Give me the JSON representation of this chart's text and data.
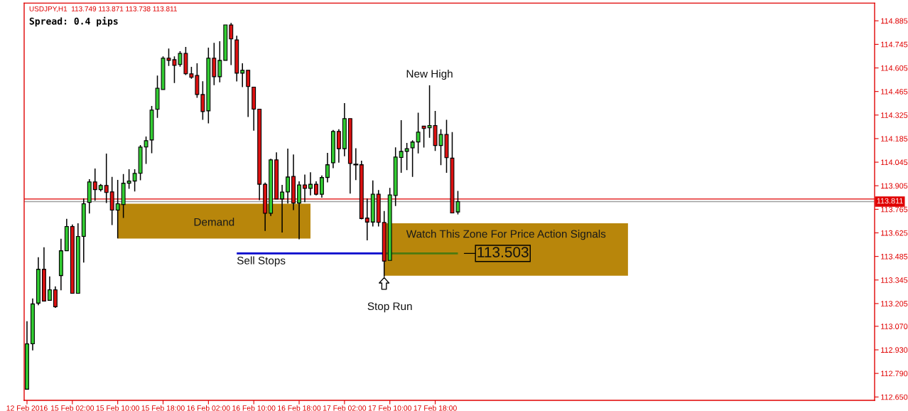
{
  "chart_data": {
    "type": "candlestick",
    "title": "USDJPY,H1  113.749 113.871 113.738 113.811",
    "subtitle": "Spread: 0.4 pips",
    "categories": [
      "12 Feb 2016",
      null,
      null,
      null,
      null,
      null,
      null,
      null,
      "15 Feb 02:00",
      null,
      null,
      null,
      null,
      null,
      null,
      null,
      "15 Feb 10:00",
      null,
      null,
      null,
      null,
      null,
      null,
      null,
      "15 Feb 18:00",
      null,
      null,
      null,
      null,
      null,
      null,
      null,
      "16 Feb 02:00",
      null,
      null,
      null,
      null,
      null,
      null,
      null,
      "16 Feb 10:00",
      null,
      null,
      null,
      null,
      null,
      null,
      null,
      "16 Feb 18:00",
      null,
      null,
      null,
      null,
      null,
      null,
      null,
      "17 Feb 02:00",
      null,
      null,
      null,
      null,
      null,
      null,
      null,
      "17 Feb 10:00",
      null,
      null,
      null,
      null,
      null,
      null,
      null,
      "17 Feb 18:00",
      null,
      null,
      null,
      null,
      null,
      null,
      null,
      null,
      null,
      null,
      null,
      null,
      null,
      null,
      null,
      null,
      null,
      null,
      null,
      null,
      null,
      null,
      null,
      null,
      null,
      null,
      null,
      null,
      null,
      null,
      null,
      null,
      null,
      null,
      null,
      null,
      null,
      null,
      null,
      null,
      null,
      null,
      null,
      null,
      null,
      null,
      null,
      null,
      null,
      null,
      null,
      null,
      null,
      null,
      null,
      null,
      null,
      null,
      null,
      null,
      null,
      null,
      null,
      null,
      null,
      null,
      null,
      null,
      null,
      null,
      null,
      null,
      null,
      null,
      null,
      null,
      null
    ],
    "ohlc": [
      [
        112.696,
        113.097,
        112.696,
        112.966
      ],
      [
        112.966,
        113.232,
        112.93,
        113.203
      ],
      [
        113.207,
        113.477,
        113.198,
        113.409
      ],
      [
        113.409,
        113.536,
        113.22,
        113.22
      ],
      [
        113.224,
        113.363,
        113.224,
        113.287
      ],
      [
        113.287,
        113.304,
        113.182,
        113.186
      ],
      [
        113.371,
        113.587,
        113.287,
        113.519
      ],
      [
        113.519,
        113.705,
        113.519,
        113.663
      ],
      [
        113.663,
        113.671,
        113.266,
        113.266
      ],
      [
        113.266,
        113.679,
        113.266,
        113.604
      ],
      [
        113.604,
        113.827,
        113.452,
        113.798
      ],
      [
        113.806,
        113.941,
        113.743,
        113.928
      ],
      [
        113.928,
        114.004,
        113.819,
        113.882
      ],
      [
        113.882,
        113.912,
        113.874,
        113.907
      ],
      [
        113.907,
        114.093,
        113.806,
        113.865
      ],
      [
        113.869,
        113.954,
        113.675,
        113.76
      ],
      [
        113.76,
        113.937,
        113.595,
        113.798
      ],
      [
        113.793,
        113.971,
        113.717,
        113.92
      ],
      [
        113.92,
        114.0,
        113.89,
        113.933
      ],
      [
        113.933,
        114.0,
        113.874,
        113.979
      ],
      [
        113.979,
        114.144,
        113.941,
        114.135
      ],
      [
        114.135,
        114.194,
        114.038,
        114.173
      ],
      [
        114.177,
        114.376,
        114.101,
        114.355
      ],
      [
        114.359,
        114.557,
        114.312,
        114.485
      ],
      [
        114.477,
        114.671,
        114.477,
        114.663
      ],
      [
        114.663,
        114.717,
        114.62,
        114.65
      ],
      [
        114.654,
        114.671,
        114.519,
        114.62
      ],
      [
        114.625,
        114.701,
        114.616,
        114.692
      ],
      [
        114.692,
        114.726,
        114.566,
        114.57
      ],
      [
        114.57,
        114.608,
        114.544,
        114.549
      ],
      [
        114.561,
        114.629,
        114.431,
        114.447
      ],
      [
        114.447,
        114.523,
        114.3,
        114.346
      ],
      [
        114.35,
        114.722,
        114.279,
        114.663
      ],
      [
        114.663,
        114.751,
        114.506,
        114.553
      ],
      [
        114.553,
        114.76,
        114.523,
        114.65
      ],
      [
        114.65,
        114.861,
        114.65,
        114.861
      ],
      [
        114.861,
        114.869,
        114.625,
        114.777
      ],
      [
        114.772,
        114.793,
        114.528,
        114.574
      ],
      [
        114.574,
        114.629,
        114.494,
        114.591
      ],
      [
        114.591,
        114.591,
        114.317,
        114.494
      ],
      [
        114.491,
        114.491,
        114.235,
        114.36
      ],
      [
        114.36,
        114.36,
        113.823,
        113.914
      ],
      [
        113.914,
        113.921,
        113.64,
        113.741
      ],
      [
        113.741,
        114.062,
        113.729,
        114.059
      ],
      [
        114.059,
        114.1,
        113.826,
        113.826
      ],
      [
        113.826,
        113.907,
        113.63,
        113.868
      ],
      [
        113.868,
        114.122,
        113.802,
        113.957
      ],
      [
        113.961,
        114.087,
        113.763,
        113.802
      ],
      [
        113.802,
        113.928,
        113.59,
        113.91
      ],
      [
        113.91,
        113.968,
        113.811,
        113.889
      ],
      [
        113.889,
        113.982,
        113.851,
        113.914
      ],
      [
        113.914,
        113.928,
        113.851,
        113.854
      ],
      [
        113.854,
        113.963,
        113.837,
        113.954
      ],
      [
        113.954,
        114.097,
        113.928,
        114.03
      ],
      [
        114.041,
        114.233,
        114.013,
        114.228
      ],
      [
        114.228,
        114.238,
        114.045,
        114.125
      ],
      [
        114.125,
        114.393,
        114.083,
        114.304
      ],
      [
        114.304,
        114.304,
        113.862,
        114.037
      ],
      [
        114.031,
        114.125,
        113.942,
        114.031
      ],
      [
        114.03,
        114.051,
        113.708,
        113.71
      ],
      [
        113.713,
        113.826,
        113.584,
        113.689
      ],
      [
        113.689,
        113.933,
        113.666,
        113.855
      ],
      [
        113.855,
        113.876,
        113.666,
        113.687
      ],
      [
        113.687,
        113.752,
        113.366,
        113.457
      ],
      [
        113.461,
        113.889,
        113.461,
        113.851
      ],
      [
        113.847,
        114.13,
        113.788,
        114.076
      ],
      [
        114.073,
        114.291,
        113.985,
        114.109
      ],
      [
        114.109,
        114.156,
        114.001,
        114.125
      ],
      [
        114.13,
        114.172,
        113.961,
        114.165
      ],
      [
        114.165,
        114.336,
        114.1,
        114.224
      ],
      [
        114.259,
        114.259,
        114.135,
        114.245
      ],
      [
        114.249,
        114.498,
        114.193,
        114.263
      ],
      [
        114.263,
        114.346,
        114.115,
        114.144
      ],
      [
        114.144,
        114.238,
        114.031,
        114.21
      ],
      [
        114.21,
        114.294,
        113.985,
        114.072
      ],
      [
        114.069,
        114.221,
        113.743,
        113.743
      ],
      [
        113.749,
        113.871,
        113.738,
        113.811
      ],
      null,
      null,
      null,
      null,
      null,
      null,
      null,
      null,
      null,
      null,
      null,
      null,
      null,
      null,
      null,
      null,
      null,
      null,
      null,
      null,
      null,
      null,
      null,
      null,
      null,
      null,
      null,
      null,
      null,
      null,
      null,
      null,
      null,
      null,
      null,
      null,
      null,
      null,
      null,
      null,
      null,
      null,
      null,
      null,
      null,
      null,
      null,
      null,
      null,
      null,
      null,
      null,
      null,
      null,
      null,
      null,
      null,
      null,
      null,
      null,
      null,
      null,
      null,
      null,
      null,
      null,
      null,
      null,
      null,
      null,
      null,
      null,
      null
    ],
    "colors": [
      "#32cd32",
      "#32cd32",
      "#32cd32",
      "#dd1111",
      "#32cd32",
      "#dd1111",
      "#32cd32",
      "#32cd32",
      "#dd1111",
      "#32cd32",
      "#32cd32",
      "#32cd32",
      "#dd1111",
      "#32cd32",
      "#dd1111",
      "#dd1111",
      "#32cd32",
      "#32cd32",
      "#32cd32",
      "#32cd32",
      "#32cd32",
      "#32cd32",
      "#32cd32",
      "#32cd32",
      "#32cd32",
      "#dd1111",
      "#dd1111",
      "#32cd32",
      "#dd1111",
      "#dd1111",
      "#dd1111",
      "#dd1111",
      "#32cd32",
      "#dd1111",
      "#32cd32",
      "#32cd32",
      "#dd1111",
      "#dd1111",
      "#32cd32",
      "#dd1111",
      "#dd1111",
      "#dd1111",
      "#dd1111",
      "#32cd32",
      "#dd1111",
      "#32cd32",
      "#32cd32",
      "#dd1111",
      "#32cd32",
      "#dd1111",
      "#32cd32",
      "#dd1111",
      "#32cd32",
      "#32cd32",
      "#32cd32",
      "#dd1111",
      "#32cd32",
      "#dd1111",
      "#000000",
      "#dd1111",
      "#dd1111",
      "#32cd32",
      "#dd1111",
      "#dd1111",
      "#32cd32",
      "#32cd32",
      "#32cd32",
      "#32cd32",
      "#32cd32",
      "#32cd32",
      "#dd1111",
      "#32cd32",
      "#dd1111",
      "#32cd32",
      "#dd1111",
      "#dd1111",
      "#32cd32",
      null,
      null,
      null,
      null,
      null,
      null,
      null,
      null,
      null,
      null,
      null,
      null,
      null,
      null,
      null,
      null,
      null,
      null,
      null,
      null,
      null,
      null,
      null,
      null,
      null,
      null,
      null,
      null,
      null,
      null,
      null,
      null,
      null,
      null,
      null,
      null,
      null,
      null,
      null,
      null,
      null,
      null,
      null,
      null,
      null,
      null,
      null,
      null,
      null,
      null,
      null,
      null,
      null,
      null,
      null,
      null,
      null,
      null,
      null,
      null,
      null,
      null,
      null,
      null,
      null,
      null,
      null,
      null,
      null,
      null,
      null,
      null,
      null
    ],
    "bands": [
      {
        "axis": "y",
        "from": 113.591,
        "to": 113.798,
        "label": "Demand",
        "color": "#b8860b"
      },
      {
        "axis": "y",
        "from": 113.37,
        "to": 113.682,
        "label": "Watch This Zone For Price Action Signals",
        "color": "#b8860b"
      }
    ],
    "ref_lines": [
      {
        "axis": "y",
        "value": 113.826,
        "color": "#e00000"
      },
      {
        "axis": "y",
        "value": 113.811,
        "label": "113.811",
        "color": "#a0a0a0"
      },
      {
        "axis": "y",
        "value": 113.503,
        "label": "Sell Stops",
        "color": "#0000cd"
      },
      {
        "axis": "y",
        "value": 113.503,
        "label": "113.503",
        "color": "#4c7a10"
      }
    ],
    "annotations": [
      "New High",
      "Stop Run"
    ],
    "ylim": [
      112.63,
      114.99
    ],
    "yticks": [
      114.885,
      114.745,
      114.605,
      114.465,
      114.325,
      114.185,
      114.045,
      113.905,
      113.765,
      113.625,
      113.485,
      113.345,
      113.205,
      {
        "value": 113.07,
        "label": "113.070"
      },
      {
        "value": 112.93,
        "label": "112.930"
      },
      {
        "value": 112.79,
        "label": "112.790"
      },
      {
        "value": 112.65,
        "label": "112.650"
      }
    ]
  }
}
